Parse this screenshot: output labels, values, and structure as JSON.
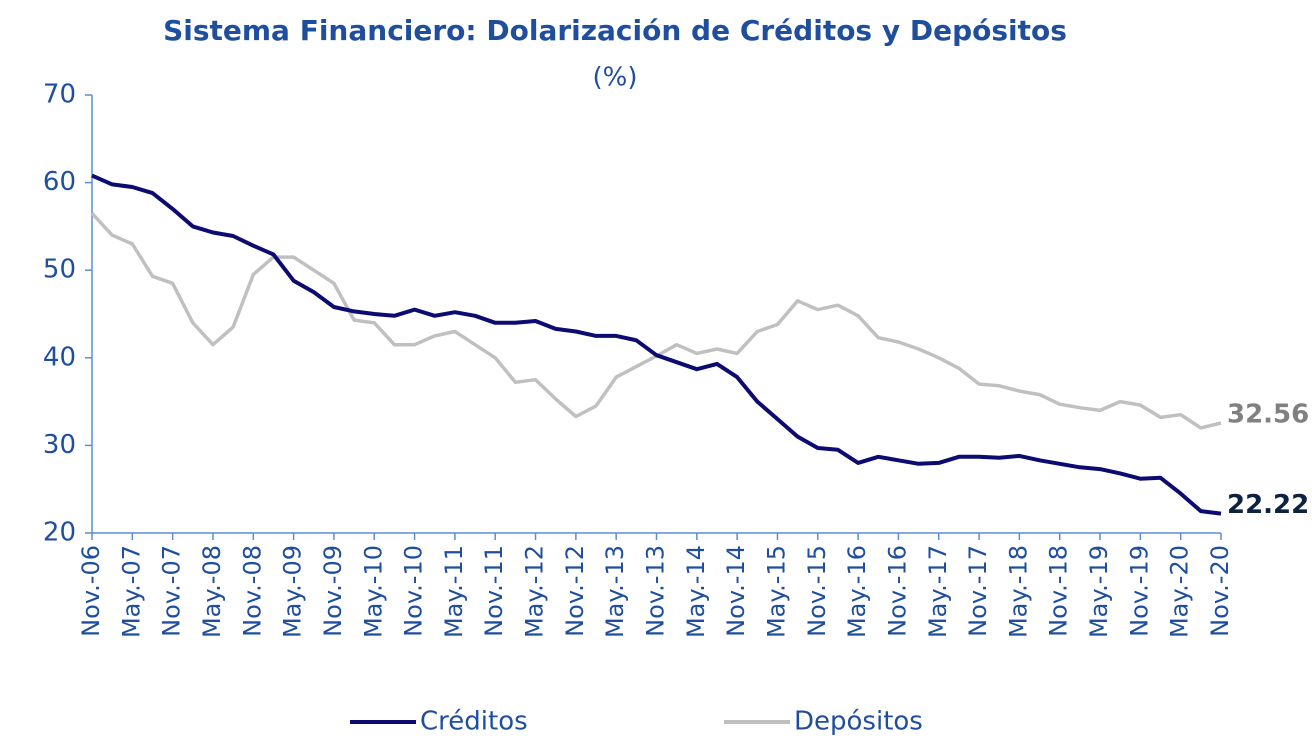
{
  "chart_data": {
    "type": "line",
    "title": "Sistema Financiero: Dolarización de Créditos y Depósitos",
    "subtitle": "(%)",
    "categories": [
      "Nov.-06",
      null,
      "May.-07",
      null,
      "Nov.-07",
      null,
      "May.-08",
      null,
      "Nov.-08",
      null,
      "May.-09",
      null,
      "Nov.-09",
      null,
      "May.-10",
      null,
      "Nov.-10",
      null,
      "May.-11",
      null,
      "Nov.-11",
      null,
      "May.-12",
      null,
      "Nov.-12",
      null,
      "May.-13",
      null,
      "Nov.-13",
      null,
      "May.-14",
      null,
      "Nov.-14",
      null,
      "May.-15",
      null,
      "Nov.-15",
      null,
      "May.-16",
      null,
      "Nov.-16",
      null,
      "May.-17",
      null,
      "Nov.-17",
      null,
      "May.-18",
      null,
      "Nov.-18",
      null,
      "May.-19",
      null,
      "Nov.-19",
      null,
      "May.-20",
      null,
      "Nov.-20"
    ],
    "series": [
      {
        "name": "Créditos",
        "color": "#0b0b72",
        "values": [
          60.8,
          59.8,
          59.5,
          58.8,
          57.0,
          55.0,
          54.3,
          53.9,
          52.8,
          51.8,
          48.8,
          47.5,
          45.8,
          45.3,
          45.0,
          44.8,
          45.5,
          44.8,
          45.2,
          44.8,
          44.0,
          44.0,
          44.2,
          43.3,
          43.0,
          42.5,
          42.5,
          42.0,
          40.3,
          39.5,
          38.7,
          39.3,
          37.8,
          35.0,
          33.0,
          31.0,
          29.7,
          29.5,
          28.0,
          28.7,
          28.3,
          27.9,
          28.0,
          28.7,
          28.7,
          28.6,
          28.8,
          28.3,
          27.9,
          27.5,
          27.3,
          26.8,
          26.2,
          26.3,
          24.5,
          22.5,
          22.22
        ]
      },
      {
        "name": "Depósitos",
        "color": "#c0c0c0",
        "values": [
          56.5,
          54.0,
          53.0,
          49.3,
          48.5,
          44.0,
          41.5,
          43.5,
          49.5,
          51.5,
          51.5,
          50.0,
          48.5,
          44.3,
          44.0,
          41.5,
          41.5,
          42.5,
          43.0,
          41.5,
          40.0,
          37.2,
          37.5,
          35.3,
          33.3,
          34.5,
          37.8,
          39.0,
          40.2,
          41.5,
          40.5,
          41.0,
          40.5,
          43.0,
          43.8,
          46.5,
          45.5,
          46.0,
          44.8,
          42.3,
          41.8,
          41.0,
          40.0,
          38.8,
          37.0,
          36.8,
          36.2,
          35.8,
          34.7,
          34.3,
          34.0,
          35.0,
          34.6,
          33.2,
          33.5,
          32.0,
          32.56
        ]
      }
    ],
    "ylim": [
      20,
      70
    ],
    "yticks": [
      20,
      30,
      40,
      50,
      60,
      70
    ],
    "grid": false,
    "legend": "bottom"
  }
}
